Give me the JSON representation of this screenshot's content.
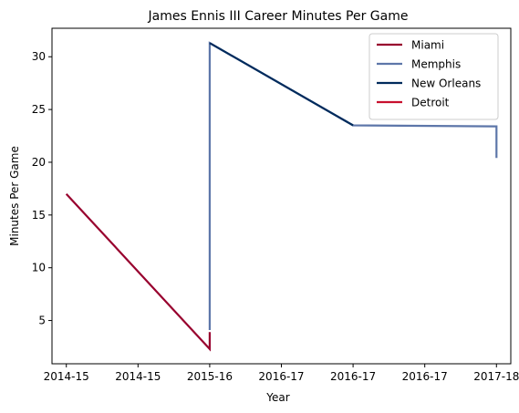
{
  "chart_data": {
    "type": "line",
    "title": "James Ennis III Career Minutes Per Game",
    "xlabel": "Year",
    "ylabel": "Minutes Per Game",
    "x_range": [
      -0.2,
      6.2
    ],
    "ylim": [
      0.9,
      32.7
    ],
    "x_ticks": [
      {
        "x": 0,
        "label": "2014-15"
      },
      {
        "x": 1,
        "label": "2014-15"
      },
      {
        "x": 2,
        "label": "2015-16"
      },
      {
        "x": 3,
        "label": "2016-17"
      },
      {
        "x": 4,
        "label": "2016-17"
      },
      {
        "x": 5,
        "label": "2016-17"
      },
      {
        "x": 6,
        "label": "2017-18"
      }
    ],
    "y_ticks": [
      5,
      10,
      15,
      20,
      25,
      30
    ],
    "grid": false,
    "legend_position": "upper right",
    "series": [
      {
        "name": "Miami",
        "color": "#98002E",
        "points": [
          [
            0,
            17.0
          ],
          [
            2,
            2.3
          ],
          [
            2,
            3.9
          ]
        ]
      },
      {
        "name": "Memphis",
        "color": "#5D76A9",
        "points": [
          [
            2,
            4.1
          ],
          [
            2,
            31.3
          ],
          [
            4,
            23.5
          ],
          [
            6,
            23.4
          ],
          [
            6,
            20.4
          ]
        ]
      },
      {
        "name": "New Orleans",
        "color": "#002B5C",
        "points": [
          [
            2,
            31.3
          ],
          [
            4,
            23.5
          ]
        ]
      },
      {
        "name": "Detroit",
        "color": "#C8102E",
        "points": []
      }
    ]
  }
}
